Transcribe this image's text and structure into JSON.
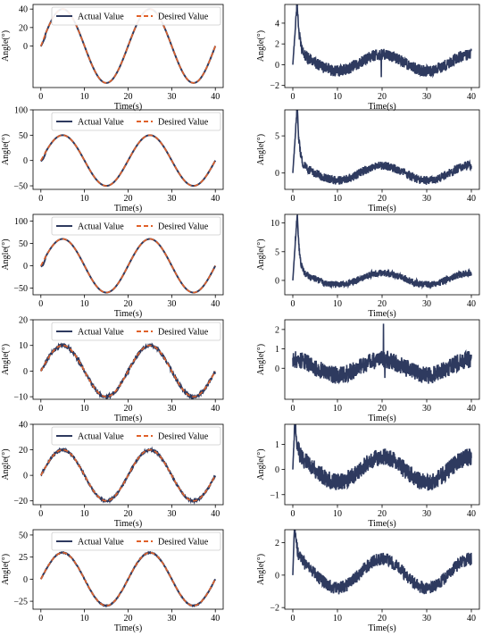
{
  "figure": {
    "colors": {
      "actual": "#2e3a5f",
      "desired": "#e0612a",
      "frame": "#000000"
    },
    "legend_labels": [
      "Actual Value",
      "Desired Value"
    ]
  },
  "chart_data": [
    {
      "type": "line",
      "panel": "row1-left",
      "xlabel": "Time(s)",
      "ylabel": "Angle(°)",
      "xlim": [
        -1.8,
        41.8
      ],
      "ylim": [
        -45,
        45
      ],
      "xticks": [
        0,
        10,
        20,
        30,
        40
      ],
      "yticks": [
        0,
        20,
        40
      ],
      "legend": "top-right",
      "series": [
        {
          "name": "Actual Value",
          "style": "solid",
          "color": "#2e3a5f",
          "amplitude": 40,
          "period": 20,
          "x_range": [
            0,
            40
          ],
          "initial_offset": [
            [
              0,
              0.4
            ],
            [
              0.5,
              1.8
            ],
            [
              1.0,
              2.6
            ]
          ]
        },
        {
          "name": "Desired Value",
          "style": "dashed",
          "color": "#e0612a",
          "amplitude": 40,
          "period": 20,
          "x_range": [
            0,
            40
          ]
        }
      ]
    },
    {
      "type": "line",
      "panel": "row1-right",
      "xlabel": "Time(s)",
      "ylabel": "Angle(°)",
      "xlim": [
        -1.8,
        41.8
      ],
      "ylim": [
        -2.2,
        5.8
      ],
      "xticks": [
        0,
        10,
        20,
        30,
        40
      ],
      "yticks": [
        -2,
        0,
        2,
        4
      ],
      "series": [
        {
          "name": "",
          "color": "#2e3a5f",
          "x_range": [
            0,
            40
          ],
          "peak": [
            1.0,
            5.3
          ],
          "baseline": 0.2,
          "wave_amplitude": 0.8,
          "noise": 0.55,
          "spikes": [
            [
              19.8,
              -1.2
            ]
          ]
        }
      ]
    },
    {
      "type": "line",
      "panel": "row2-left",
      "xlabel": "Time(s)",
      "ylabel": "Angle(°)",
      "xlim": [
        -1.8,
        41.8
      ],
      "ylim": [
        -57,
        100
      ],
      "xticks": [
        0,
        10,
        20,
        30,
        40
      ],
      "yticks": [
        -50,
        0,
        50,
        100
      ],
      "legend": "top-right",
      "series": [
        {
          "name": "Actual Value",
          "style": "solid",
          "color": "#2e3a5f",
          "amplitude": 50,
          "period": 20,
          "x_range": [
            0,
            40
          ],
          "initial_offset": [
            [
              0,
              1.5
            ],
            [
              0.5,
              5
            ],
            [
              1.0,
              3
            ]
          ]
        },
        {
          "name": "Desired Value",
          "style": "dashed",
          "color": "#e0612a",
          "amplitude": 50,
          "period": 20,
          "x_range": [
            0,
            40
          ]
        }
      ]
    },
    {
      "type": "line",
      "panel": "row2-right",
      "xlabel": "Time(s)",
      "ylabel": "Angle(°)",
      "xlim": [
        -1.8,
        41.8
      ],
      "ylim": [
        -2.2,
        8.5
      ],
      "xticks": [
        0,
        10,
        20,
        30,
        40
      ],
      "yticks": [
        0,
        5
      ],
      "series": [
        {
          "name": "",
          "color": "#2e3a5f",
          "x_range": [
            0,
            40
          ],
          "peak": [
            1.0,
            8.0
          ],
          "baseline": 0.0,
          "wave_amplitude": 1.0,
          "noise": 0.6,
          "spikes": []
        }
      ]
    },
    {
      "type": "line",
      "panel": "row3-left",
      "xlabel": "Time(s)",
      "ylabel": "Angle(°)",
      "xlim": [
        -1.8,
        41.8
      ],
      "ylim": [
        -65,
        115
      ],
      "xticks": [
        0,
        10,
        20,
        30,
        40
      ],
      "yticks": [
        -50,
        0,
        50,
        100
      ],
      "legend": "top-right",
      "series": [
        {
          "name": "Actual Value",
          "style": "solid",
          "color": "#2e3a5f",
          "amplitude": 60,
          "period": 20,
          "x_range": [
            0,
            40
          ],
          "initial_offset": [
            [
              0,
              2
            ],
            [
              0.5,
              8
            ],
            [
              1.0,
              4
            ]
          ]
        },
        {
          "name": "Desired Value",
          "style": "dashed",
          "color": "#e0612a",
          "amplitude": 60,
          "period": 20,
          "x_range": [
            0,
            40
          ]
        }
      ]
    },
    {
      "type": "line",
      "panel": "row3-right",
      "xlabel": "Time(s)",
      "ylabel": "Angle(°)",
      "xlim": [
        -1.8,
        41.8
      ],
      "ylim": [
        -2.5,
        11.5
      ],
      "xticks": [
        0,
        10,
        20,
        30,
        40
      ],
      "yticks": [
        0,
        5,
        10
      ],
      "series": [
        {
          "name": "",
          "color": "#2e3a5f",
          "x_range": [
            0,
            40
          ],
          "peak": [
            1.0,
            10.8
          ],
          "baseline": 0.3,
          "wave_amplitude": 1.0,
          "noise": 0.6,
          "spikes": []
        }
      ]
    },
    {
      "type": "line",
      "panel": "row4-left",
      "xlabel": "Time(s)",
      "ylabel": "Angle(°)",
      "xlim": [
        -1.8,
        41.8
      ],
      "ylim": [
        -11,
        20
      ],
      "xticks": [
        0,
        10,
        20,
        30,
        40
      ],
      "yticks": [
        -10,
        0,
        10,
        20
      ],
      "legend": "top-right",
      "series": [
        {
          "name": "Actual Value",
          "style": "solid",
          "color": "#2e3a5f",
          "amplitude": 10,
          "period": 20,
          "x_range": [
            0,
            40
          ],
          "noise": 0.5
        },
        {
          "name": "Desired Value",
          "style": "dashed",
          "color": "#e0612a",
          "amplitude": 10,
          "period": 20,
          "x_range": [
            0,
            40
          ]
        }
      ]
    },
    {
      "type": "line",
      "panel": "row4-right",
      "xlabel": "Time(s)",
      "ylabel": "Angle(°)",
      "xlim": [
        -1.8,
        41.8
      ],
      "ylim": [
        -1.6,
        2.5
      ],
      "xticks": [
        0,
        10,
        20,
        30,
        40
      ],
      "yticks": [
        0,
        1,
        2
      ],
      "series": [
        {
          "name": "",
          "color": "#2e3a5f",
          "x_range": [
            0,
            40
          ],
          "peak": null,
          "baseline": 0.05,
          "wave_amplitude": 0.4,
          "noise": 0.45,
          "spikes": [
            [
              20.3,
              2.3
            ],
            [
              20.6,
              -0.5
            ]
          ]
        }
      ]
    },
    {
      "type": "line",
      "panel": "row5-left",
      "xlabel": "Time(s)",
      "ylabel": "Angle(°)",
      "xlim": [
        -1.8,
        41.8
      ],
      "ylim": [
        -23,
        40
      ],
      "xticks": [
        0,
        10,
        20,
        30,
        40
      ],
      "yticks": [
        -20,
        0,
        20,
        40
      ],
      "legend": "top-right",
      "series": [
        {
          "name": "Actual Value",
          "style": "solid",
          "color": "#2e3a5f",
          "amplitude": 20,
          "period": 20,
          "x_range": [
            0,
            40
          ],
          "noise": 0.6
        },
        {
          "name": "Desired Value",
          "style": "dashed",
          "color": "#e0612a",
          "amplitude": 20,
          "period": 20,
          "x_range": [
            0,
            40
          ]
        }
      ]
    },
    {
      "type": "line",
      "panel": "row5-right",
      "xlabel": "Time(s)",
      "ylabel": "Angle(°)",
      "xlim": [
        -1.8,
        41.8
      ],
      "ylim": [
        -1.4,
        1.8
      ],
      "xticks": [
        0,
        10,
        20,
        30,
        40
      ],
      "yticks": [
        -1,
        0,
        1
      ],
      "series": [
        {
          "name": "",
          "color": "#2e3a5f",
          "x_range": [
            0,
            40
          ],
          "peak": [
            0.5,
            1.6
          ],
          "baseline": 0.0,
          "wave_amplitude": 0.5,
          "noise": 0.35,
          "spikes": []
        }
      ]
    },
    {
      "type": "line",
      "panel": "row6-left",
      "xlabel": "Time(s)",
      "ylabel": "Angle(°)",
      "xlim": [
        -1.8,
        41.8
      ],
      "ylim": [
        -34,
        56
      ],
      "xticks": [
        0,
        10,
        20,
        30,
        40
      ],
      "yticks": [
        -25,
        0,
        25,
        50
      ],
      "legend": "top-right",
      "series": [
        {
          "name": "Actual Value",
          "style": "solid",
          "color": "#2e3a5f",
          "amplitude": 30,
          "period": 20,
          "x_range": [
            0,
            40
          ],
          "noise": 0.4
        },
        {
          "name": "Desired Value",
          "style": "dashed",
          "color": "#e0612a",
          "amplitude": 30,
          "period": 20,
          "x_range": [
            0,
            40
          ]
        }
      ]
    },
    {
      "type": "line",
      "panel": "row6-right",
      "xlabel": "Time(s)",
      "ylabel": "Angle(°)",
      "xlim": [
        -1.8,
        41.8
      ],
      "ylim": [
        -2.1,
        2.8
      ],
      "xticks": [
        0,
        10,
        20,
        30,
        40
      ],
      "yticks": [
        -2,
        0,
        2
      ],
      "series": [
        {
          "name": "",
          "color": "#2e3a5f",
          "x_range": [
            0,
            40
          ],
          "peak": [
            0.4,
            2.5
          ],
          "baseline": 0.1,
          "wave_amplitude": 0.9,
          "noise": 0.4,
          "spikes": []
        }
      ]
    }
  ]
}
